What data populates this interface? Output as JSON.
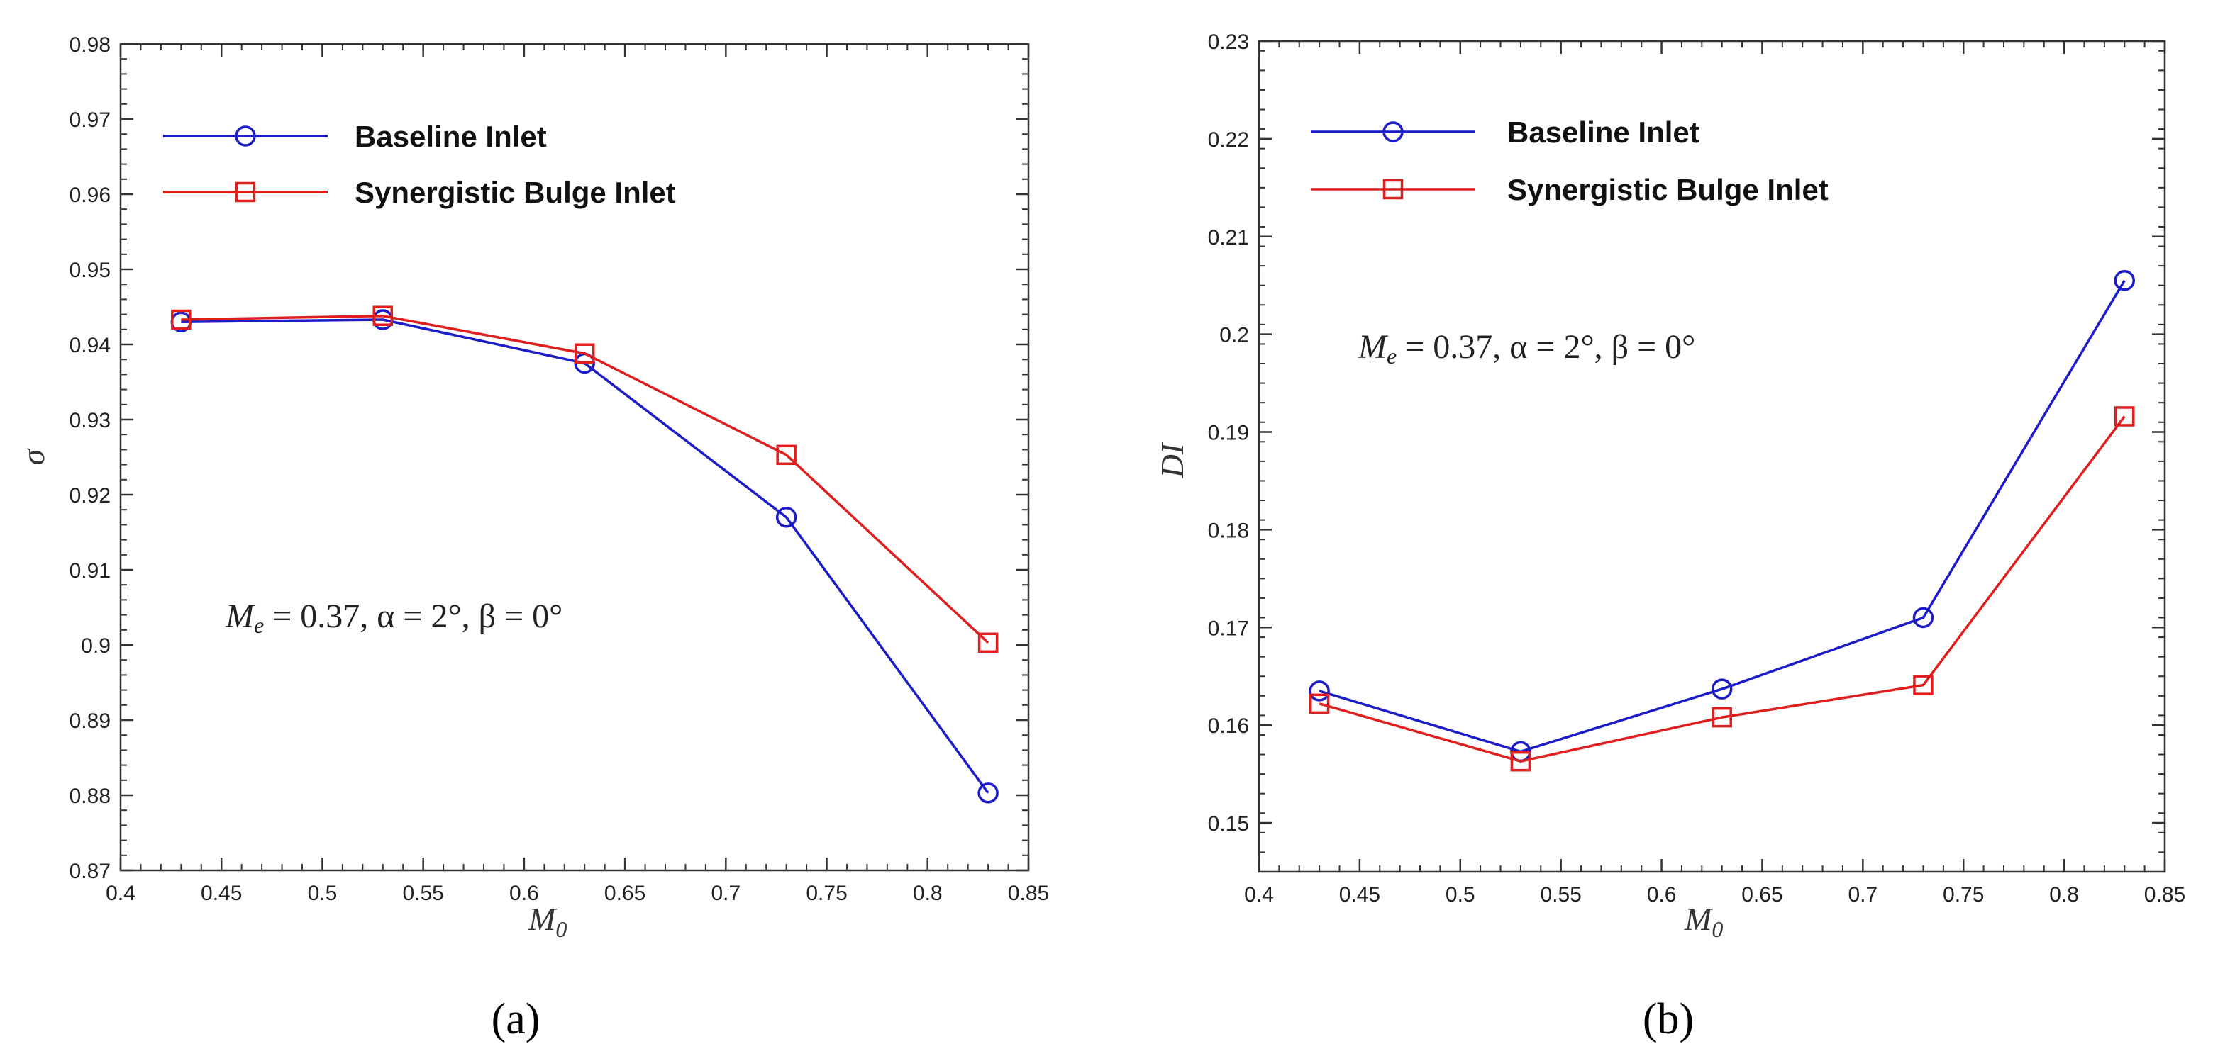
{
  "chart_data": [
    {
      "type": "line",
      "panel_label": "(a)",
      "title": "",
      "xlabel": "M0",
      "xlabel_main": "M",
      "xlabel_sub": "0",
      "ylabel": "σ",
      "xlim": [
        0.4,
        0.85
      ],
      "ylim": [
        0.87,
        0.98
      ],
      "x_ticks": [
        "0.4",
        "0.45",
        "0.5",
        "0.55",
        "0.6",
        "0.65",
        "0.7",
        "0.75",
        "0.8",
        "0.85"
      ],
      "x_tick_values": [
        0.4,
        0.45,
        0.5,
        0.55,
        0.6,
        0.65,
        0.7,
        0.75,
        0.8,
        0.85
      ],
      "y_ticks": [
        "0.87",
        "0.88",
        "0.89",
        "0.9",
        "0.91",
        "0.92",
        "0.93",
        "0.94",
        "0.95",
        "0.96",
        "0.97",
        "0.98"
      ],
      "y_tick_values": [
        0.87,
        0.88,
        0.89,
        0.9,
        0.91,
        0.92,
        0.93,
        0.94,
        0.95,
        0.96,
        0.97,
        0.98
      ],
      "x": [
        0.43,
        0.53,
        0.63,
        0.73,
        0.83
      ],
      "series": [
        {
          "name": "Baseline Inlet",
          "color": "#1c1cc8",
          "marker": "circle",
          "values": [
            0.943,
            0.9433,
            0.9375,
            0.917,
            0.8803
          ]
        },
        {
          "name": "Synergistic Bulge Inlet",
          "color": "#e01e1e",
          "marker": "square",
          "values": [
            0.9433,
            0.9438,
            0.9388,
            0.9253,
            0.9003
          ]
        }
      ],
      "legend_position": "top-left",
      "annotation": "Me = 0.37, α = 2°, β = 0°",
      "annotation_parts": {
        "m": "M",
        "sub": "e",
        "rest": " = 0.37, α = 2°, β = 0°"
      }
    },
    {
      "type": "line",
      "panel_label": "(b)",
      "title": "",
      "xlabel": "M0",
      "xlabel_main": "M",
      "xlabel_sub": "0",
      "ylabel": "DI",
      "xlim": [
        0.4,
        0.85
      ],
      "ylim": [
        0.145,
        0.23
      ],
      "x_ticks": [
        "0.4",
        "0.45",
        "0.5",
        "0.55",
        "0.6",
        "0.65",
        "0.7",
        "0.75",
        "0.8",
        "0.85"
      ],
      "x_tick_values": [
        0.4,
        0.45,
        0.5,
        0.55,
        0.6,
        0.65,
        0.7,
        0.75,
        0.8,
        0.85
      ],
      "y_ticks": [
        "0.15",
        "0.16",
        "0.17",
        "0.18",
        "0.19",
        "0.2",
        "0.21",
        "0.22",
        "0.23"
      ],
      "y_tick_values": [
        0.15,
        0.16,
        0.17,
        0.18,
        0.19,
        0.2,
        0.21,
        0.22,
        0.23
      ],
      "x": [
        0.43,
        0.53,
        0.63,
        0.73,
        0.83
      ],
      "series": [
        {
          "name": "Baseline Inlet",
          "color": "#1c1cc8",
          "marker": "circle",
          "values": [
            0.1635,
            0.1573,
            0.1637,
            0.171,
            0.2055
          ]
        },
        {
          "name": "Synergistic Bulge Inlet",
          "color": "#e01e1e",
          "marker": "square",
          "values": [
            0.1622,
            0.1563,
            0.1608,
            0.1641,
            0.1916
          ]
        }
      ],
      "legend_position": "top-left",
      "annotation": "Me = 0.37, α = 2°, β = 0°",
      "annotation_parts": {
        "m": "M",
        "sub": "e",
        "rest": " = 0.37, α = 2°, β = 0°"
      }
    }
  ]
}
